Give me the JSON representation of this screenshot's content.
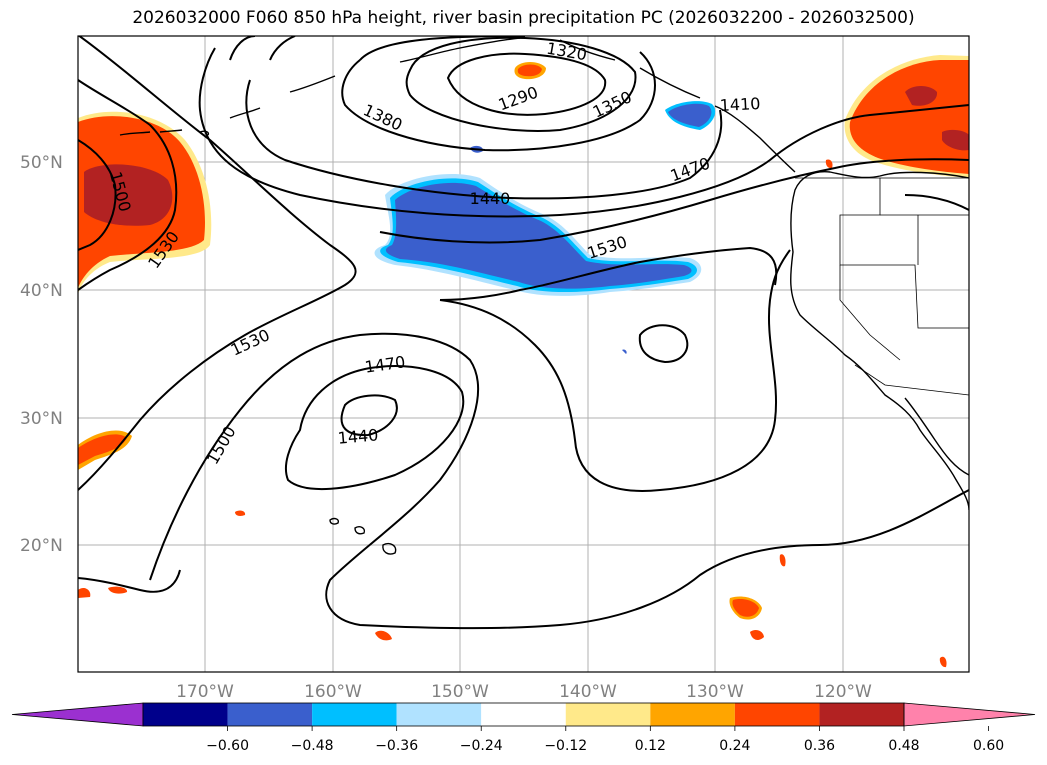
{
  "title": "2026032000 F060 850 hPa height, river basin precipitation PC (2026032200 - 2026032500)",
  "map": {
    "lat_labels": [
      "50°N",
      "40°N",
      "30°N",
      "20°N"
    ],
    "lon_labels": [
      "170°W",
      "160°W",
      "150°W",
      "140°W",
      "130°W",
      "120°W"
    ],
    "contour_labels": [
      "1320",
      "1290",
      "1380",
      "1350",
      "1410",
      "1470",
      "1440",
      "1530",
      "1500",
      "1530",
      "1470",
      "1440",
      "1500"
    ]
  },
  "colorbar": {
    "colors": [
      "#9b30d0",
      "#00008b",
      "#3a5fcd",
      "#00bfff",
      "#b0e2ff",
      "#ffffff",
      "#ffe98a",
      "#ffa500",
      "#ff4500",
      "#b22222",
      "#ff82ab"
    ],
    "ticks": [
      "−0.60",
      "−0.48",
      "−0.36",
      "−0.24",
      "−0.12",
      "0.12",
      "0.24",
      "0.36",
      "0.48",
      "0.60"
    ]
  }
}
